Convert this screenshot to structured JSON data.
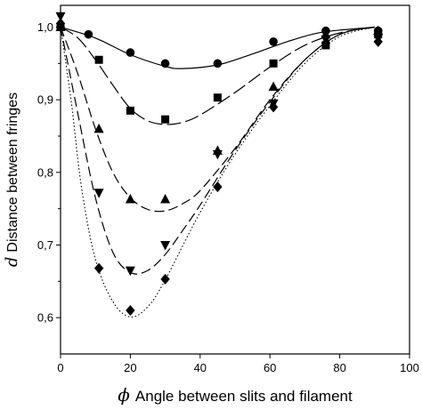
{
  "chart_data": {
    "type": "scatter",
    "xlabel_symbol": "ϕ",
    "xlabel_text": "Angle between slits and filament",
    "ylabel_symbol": "d",
    "ylabel_text": "Distance between fringes",
    "xlim": [
      0,
      100
    ],
    "ylim": [
      0.55,
      1.03
    ],
    "xticks": [
      "0",
      "20",
      "40",
      "60",
      "80",
      "100"
    ],
    "yticks": [
      "0,6",
      "0,7",
      "0,8",
      "0,9",
      "1,0"
    ],
    "grid": false,
    "series": [
      {
        "marker": "circle",
        "line": "solid",
        "points": [
          [
            0,
            1.0
          ],
          [
            8,
            0.99
          ],
          [
            20,
            0.965
          ],
          [
            30,
            0.95
          ],
          [
            45,
            0.95
          ],
          [
            61,
            0.98
          ],
          [
            76,
            0.995
          ],
          [
            91,
            0.995
          ]
        ],
        "curve": [
          [
            0,
            1.0
          ],
          [
            10,
            0.985
          ],
          [
            20,
            0.962
          ],
          [
            30,
            0.946
          ],
          [
            35,
            0.943
          ],
          [
            45,
            0.948
          ],
          [
            55,
            0.963
          ],
          [
            65,
            0.98
          ],
          [
            75,
            0.993
          ],
          [
            90,
            1.0
          ]
        ]
      },
      {
        "marker": "square",
        "line": "long-dash",
        "points": [
          [
            0,
            1.0
          ],
          [
            11,
            0.955
          ],
          [
            20,
            0.885
          ],
          [
            30,
            0.873
          ],
          [
            45,
            0.903
          ],
          [
            61,
            0.95
          ],
          [
            76,
            0.975
          ],
          [
            91,
            0.99
          ]
        ],
        "curve": [
          [
            0,
            1.0
          ],
          [
            5,
            0.985
          ],
          [
            10,
            0.955
          ],
          [
            15,
            0.92
          ],
          [
            20,
            0.888
          ],
          [
            25,
            0.871
          ],
          [
            30,
            0.866
          ],
          [
            35,
            0.869
          ],
          [
            40,
            0.879
          ],
          [
            50,
            0.91
          ],
          [
            60,
            0.945
          ],
          [
            70,
            0.975
          ],
          [
            80,
            0.992
          ],
          [
            90,
            1.0
          ]
        ]
      },
      {
        "marker": "triangle-up",
        "line": "dash",
        "points": [
          [
            0,
            1.0
          ],
          [
            11,
            0.86
          ],
          [
            20,
            0.763
          ],
          [
            30,
            0.763
          ],
          [
            45,
            0.83
          ],
          [
            61,
            0.918
          ],
          [
            76,
            0.99
          ],
          [
            91,
            0.995
          ]
        ],
        "curve": [
          [
            0,
            1.0
          ],
          [
            5,
            0.935
          ],
          [
            10,
            0.86
          ],
          [
            15,
            0.8
          ],
          [
            20,
            0.765
          ],
          [
            25,
            0.749
          ],
          [
            30,
            0.747
          ],
          [
            35,
            0.757
          ],
          [
            40,
            0.775
          ],
          [
            50,
            0.833
          ],
          [
            60,
            0.9
          ],
          [
            70,
            0.955
          ],
          [
            80,
            0.99
          ],
          [
            90,
            1.0
          ]
        ]
      },
      {
        "marker": "triangle-down",
        "line": "dash",
        "points": [
          [
            0,
            1.015
          ],
          [
            11,
            0.772
          ],
          [
            20,
            0.665
          ],
          [
            30,
            0.7
          ],
          [
            45,
            0.825
          ],
          [
            61,
            0.895
          ],
          [
            76,
            0.983
          ],
          [
            91,
            0.985
          ]
        ],
        "curve": [
          [
            0,
            1.0
          ],
          [
            5,
            0.88
          ],
          [
            10,
            0.765
          ],
          [
            15,
            0.69
          ],
          [
            20,
            0.662
          ],
          [
            25,
            0.665
          ],
          [
            30,
            0.687
          ],
          [
            35,
            0.72
          ],
          [
            40,
            0.755
          ],
          [
            50,
            0.83
          ],
          [
            60,
            0.897
          ],
          [
            70,
            0.955
          ],
          [
            80,
            0.99
          ],
          [
            90,
            1.0
          ]
        ]
      },
      {
        "marker": "diamond",
        "line": "dotted",
        "points": [
          [
            0,
            1.005
          ],
          [
            11,
            0.668
          ],
          [
            20,
            0.61
          ],
          [
            30,
            0.653
          ],
          [
            45,
            0.78
          ],
          [
            61,
            0.89
          ],
          [
            76,
            0.978
          ],
          [
            91,
            0.98
          ]
        ],
        "curve": [
          [
            0,
            1.0
          ],
          [
            3,
            0.9
          ],
          [
            6,
            0.78
          ],
          [
            10,
            0.68
          ],
          [
            15,
            0.622
          ],
          [
            20,
            0.601
          ],
          [
            25,
            0.615
          ],
          [
            30,
            0.652
          ],
          [
            40,
            0.745
          ],
          [
            50,
            0.825
          ],
          [
            60,
            0.892
          ],
          [
            70,
            0.95
          ],
          [
            80,
            0.987
          ],
          [
            90,
            1.0
          ]
        ]
      }
    ]
  }
}
